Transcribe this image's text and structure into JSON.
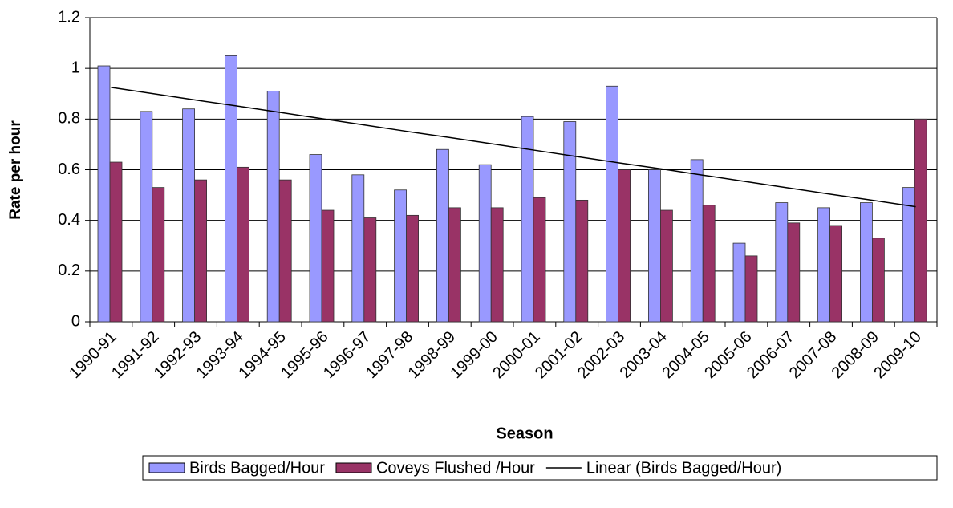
{
  "chart_data": {
    "type": "bar",
    "x_label": "Season",
    "y_label": "Rate per hour",
    "categories": [
      "1990-91",
      "1991-92",
      "1992-93",
      "1993-94",
      "1994-95",
      "1995-96",
      "1996-97",
      "1997-98",
      "1998-99",
      "1999-00",
      "2000-01",
      "2001-02",
      "2002-03",
      "2003-04",
      "2004-05",
      "2005-06",
      "2006-07",
      "2007-08",
      "2008-09",
      "2009-10"
    ],
    "series": [
      {
        "name": "Birds Bagged/Hour",
        "type": "bar",
        "color": "#9999ff",
        "values": [
          1.01,
          0.83,
          0.84,
          1.05,
          0.91,
          0.66,
          0.58,
          0.52,
          0.68,
          0.62,
          0.81,
          0.79,
          0.93,
          0.6,
          0.64,
          0.31,
          0.47,
          0.45,
          0.47,
          0.53
        ]
      },
      {
        "name": "Coveys Flushed /Hour",
        "type": "bar",
        "color": "#993366",
        "values": [
          0.63,
          0.53,
          0.56,
          0.61,
          0.56,
          0.44,
          0.41,
          0.42,
          0.45,
          0.45,
          0.49,
          0.48,
          0.6,
          0.44,
          0.46,
          0.26,
          0.39,
          0.38,
          0.33,
          0.8
        ]
      },
      {
        "name": "Linear (Birds Bagged/Hour)",
        "type": "line",
        "color": "#000000",
        "values": [
          0.925,
          0.9,
          0.875,
          0.851,
          0.826,
          0.801,
          0.776,
          0.751,
          0.727,
          0.702,
          0.677,
          0.652,
          0.627,
          0.603,
          0.578,
          0.553,
          0.528,
          0.503,
          0.479,
          0.454
        ]
      }
    ],
    "ylim": [
      0,
      1.2
    ],
    "yticks": [
      0,
      0.2,
      0.4,
      0.6,
      0.8,
      1,
      1.2
    ],
    "grid": true,
    "legend": "bottom"
  }
}
